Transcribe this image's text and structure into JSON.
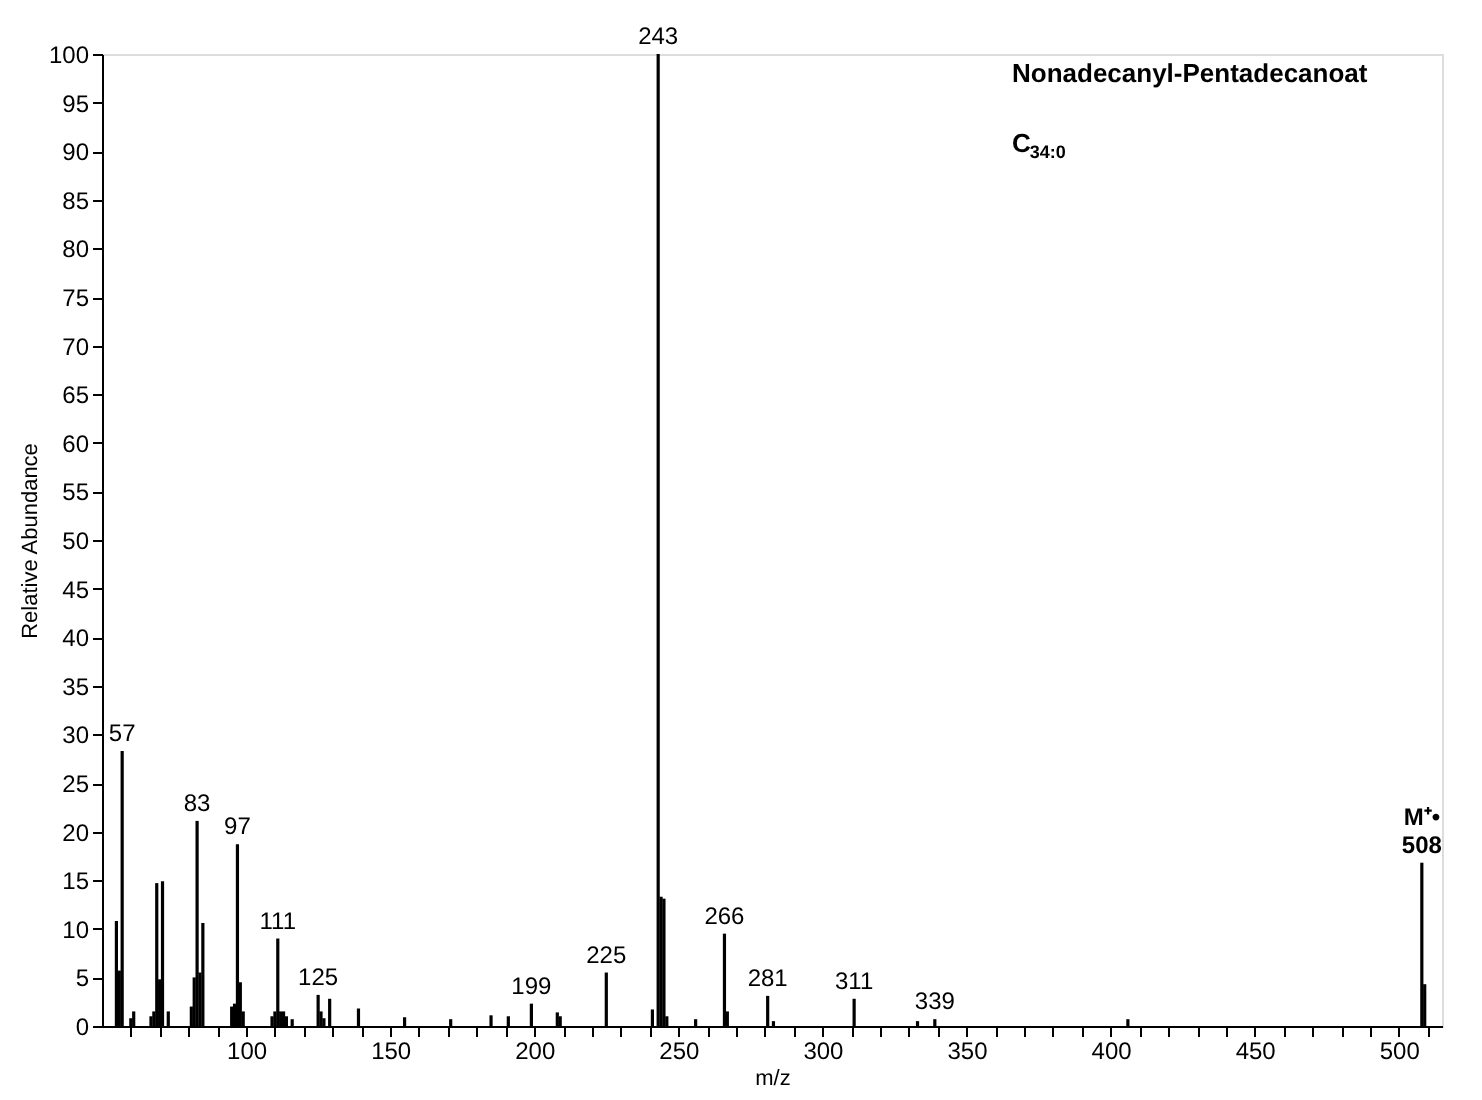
{
  "chart_data": {
    "type": "bar",
    "title": "Nonadecanyl-Pentadecanoat",
    "subtitle": "C$_{34:0}$",
    "xlabel": "m/z",
    "ylabel": "Relative Abundance",
    "x": [
      55,
      56,
      57,
      60,
      61,
      67,
      68,
      69,
      70,
      71,
      73,
      81,
      82,
      83,
      84,
      85,
      95,
      96,
      97,
      98,
      99,
      109,
      110,
      111,
      112,
      113,
      114,
      116,
      125,
      126,
      127,
      129,
      139,
      155,
      171,
      185,
      191,
      199,
      208,
      209,
      225,
      241,
      243,
      244,
      245,
      246,
      256,
      266,
      267,
      281,
      283,
      311,
      333,
      339,
      406,
      508,
      509
    ],
    "values": [
      10.8,
      5.7,
      28.3,
      0.8,
      1.5,
      1,
      1.5,
      14.7,
      4.8,
      14.9,
      1.5,
      2,
      5,
      21.1,
      5.5,
      10.6,
      2,
      2.3,
      18.7,
      4.5,
      1.5,
      1,
      1.5,
      9,
      1.5,
      1.5,
      1,
      0.7,
      3.2,
      1.5,
      0.8,
      2.8,
      1.8,
      0.9,
      0.7,
      1.1,
      1,
      2.3,
      1.4,
      1,
      5.5,
      1.7,
      100,
      13.3,
      13.1,
      1,
      0.7,
      9.5,
      1.5,
      3.1,
      0.5,
      2.8,
      0.5,
      0.7,
      0.7,
      16.8,
      4.3
    ],
    "color": "#000000",
    "xlim": [
      50,
      515
    ],
    "xticks": [
      {
        "value": 60,
        "label": null
      },
      {
        "value": 70,
        "label": null
      },
      {
        "value": 80,
        "label": null
      },
      {
        "value": 90,
        "label": null
      },
      100,
      {
        "value": 110,
        "label": null
      },
      {
        "value": 120,
        "label": null
      },
      {
        "value": 130,
        "label": null
      },
      {
        "value": 140,
        "label": null
      },
      150,
      {
        "value": 160,
        "label": null
      },
      {
        "value": 170,
        "label": null
      },
      {
        "value": 180,
        "label": null
      },
      {
        "value": 190,
        "label": null
      },
      200,
      {
        "value": 210,
        "label": null
      },
      {
        "value": 220,
        "label": null
      },
      {
        "value": 230,
        "label": null
      },
      {
        "value": 240,
        "label": null
      },
      250,
      {
        "value": 260,
        "label": null
      },
      {
        "value": 270,
        "label": null
      },
      {
        "value": 280,
        "label": null
      },
      {
        "value": 290,
        "label": null
      },
      300,
      {
        "value": 310,
        "label": null
      },
      {
        "value": 320,
        "label": null
      },
      {
        "value": 330,
        "label": null
      },
      {
        "value": 340,
        "label": null
      },
      350,
      {
        "value": 360,
        "label": null
      },
      {
        "value": 370,
        "label": null
      },
      {
        "value": 380,
        "label": null
      },
      {
        "value": 390,
        "label": null
      },
      400,
      {
        "value": 410,
        "label": null
      },
      {
        "value": 420,
        "label": null
      },
      {
        "value": 430,
        "label": null
      },
      {
        "value": 440,
        "label": null
      },
      450,
      {
        "value": 460,
        "label": null
      },
      {
        "value": 470,
        "label": null
      },
      {
        "value": 480,
        "label": null
      },
      {
        "value": 490,
        "label": null
      },
      500,
      {
        "value": 510,
        "label": null
      }
    ],
    "ylim": [
      0,
      100
    ],
    "yticks": [
      0,
      5,
      10,
      15,
      20,
      25,
      30,
      35,
      40,
      45,
      50,
      55,
      60,
      65,
      70,
      75,
      80,
      85,
      90,
      95,
      100
    ],
    "grid": false,
    "annotations": [
      {
        "text": "57",
        "x": 57,
        "y": 28.3
      },
      {
        "text": "83",
        "x": 83,
        "y": 21.1
      },
      {
        "text": "97",
        "x": 97,
        "y": 18.7
      },
      {
        "text": "111",
        "x": 111,
        "y": 9
      },
      {
        "text": "125",
        "x": 125,
        "y": 3.2
      },
      {
        "text": "199",
        "x": 199,
        "y": 2.3
      },
      {
        "text": "225",
        "x": 225,
        "y": 5.5
      },
      {
        "text": "243",
        "x": 243,
        "y": 100
      },
      {
        "text": "266",
        "x": 266,
        "y": 9.5
      },
      {
        "text": "281",
        "x": 281,
        "y": 3.1
      },
      {
        "text": "311",
        "x": 311,
        "y": 2.8
      },
      {
        "text": "339",
        "x": 339,
        "y": 0.7
      },
      {
        "text": "508",
        "x": 508,
        "y": 16.8
      },
      {
        "text": "M⁺•",
        "x": 508,
        "y": 16.8
      }
    ]
  }
}
